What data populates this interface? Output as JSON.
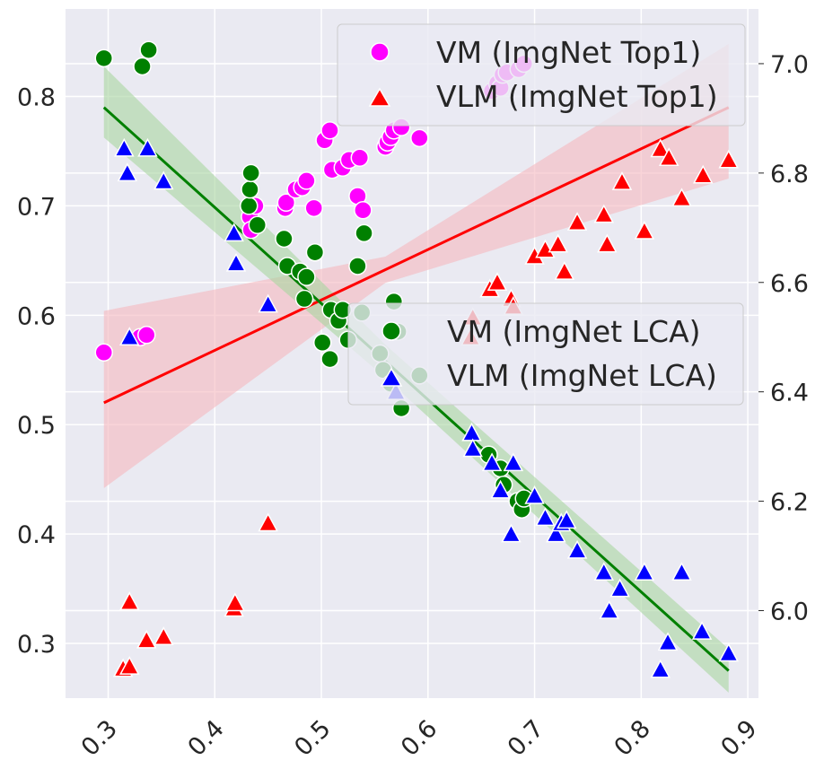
{
  "chart_data": {
    "type": "scatter",
    "x_ticks": [
      "0.3",
      "0.4",
      "0.5",
      "0.6",
      "0.7",
      "0.8",
      "0.9"
    ],
    "y_left_ticks": [
      "0.3",
      "0.4",
      "0.5",
      "0.6",
      "0.7",
      "0.8"
    ],
    "y_right_ticks": [
      "6.0",
      "6.2",
      "6.4",
      "6.6",
      "6.8",
      "7.0"
    ],
    "xlim": [
      0.26,
      0.91
    ],
    "ylim_left": [
      0.25,
      0.88
    ],
    "ylim_right": [
      5.84,
      7.1
    ],
    "grid": true,
    "legends": [
      {
        "position": "top-right",
        "entries": [
          {
            "label": "VM (ImgNet Top1)",
            "marker": "circle",
            "color": "#ff00ff"
          },
          {
            "label": "VLM (ImgNet Top1)",
            "marker": "triangle",
            "color": "#ff0000"
          }
        ]
      },
      {
        "position": "center-right",
        "entries": [
          {
            "label": "VM (ImgNet LCA)",
            "marker": "circle",
            "color": "#008000"
          },
          {
            "label": "VLM (ImgNet LCA)",
            "marker": "triangle",
            "color": "#0000ff"
          }
        ]
      }
    ],
    "series": [
      {
        "name": "VM (ImgNet Top1)",
        "axis": "left",
        "marker": "circle",
        "color": "#ff00ff",
        "points": [
          [
            0.296,
            0.566
          ],
          [
            0.33,
            0.58
          ],
          [
            0.336,
            0.582
          ],
          [
            0.433,
            0.69
          ],
          [
            0.434,
            0.678
          ],
          [
            0.438,
            0.7
          ],
          [
            0.466,
            0.698
          ],
          [
            0.467,
            0.703
          ],
          [
            0.476,
            0.715
          ],
          [
            0.482,
            0.717
          ],
          [
            0.486,
            0.723
          ],
          [
            0.493,
            0.698
          ],
          [
            0.503,
            0.76
          ],
          [
            0.508,
            0.769
          ],
          [
            0.51,
            0.733
          ],
          [
            0.52,
            0.735
          ],
          [
            0.526,
            0.742
          ],
          [
            0.534,
            0.709
          ],
          [
            0.536,
            0.744
          ],
          [
            0.539,
            0.696
          ],
          [
            0.56,
            0.754
          ],
          [
            0.562,
            0.758
          ],
          [
            0.565,
            0.763
          ],
          [
            0.568,
            0.769
          ],
          [
            0.575,
            0.772
          ],
          [
            0.592,
            0.762
          ],
          [
            0.66,
            0.805
          ],
          [
            0.665,
            0.812
          ],
          [
            0.668,
            0.808
          ],
          [
            0.67,
            0.82
          ],
          [
            0.674,
            0.822
          ],
          [
            0.685,
            0.825
          ],
          [
            0.69,
            0.83
          ]
        ]
      },
      {
        "name": "VLM (ImgNet Top1)",
        "axis": "left",
        "marker": "triangle",
        "color": "#ff0000",
        "points": [
          [
            0.314,
            0.277
          ],
          [
            0.32,
            0.279
          ],
          [
            0.32,
            0.338
          ],
          [
            0.336,
            0.303
          ],
          [
            0.352,
            0.306
          ],
          [
            0.418,
            0.332
          ],
          [
            0.419,
            0.337
          ],
          [
            0.45,
            0.41
          ],
          [
            0.64,
            0.58
          ],
          [
            0.642,
            0.598
          ],
          [
            0.658,
            0.624
          ],
          [
            0.665,
            0.63
          ],
          [
            0.678,
            0.615
          ],
          [
            0.68,
            0.608
          ],
          [
            0.7,
            0.654
          ],
          [
            0.71,
            0.66
          ],
          [
            0.722,
            0.665
          ],
          [
            0.728,
            0.64
          ],
          [
            0.74,
            0.685
          ],
          [
            0.765,
            0.692
          ],
          [
            0.768,
            0.665
          ],
          [
            0.782,
            0.722
          ],
          [
            0.803,
            0.677
          ],
          [
            0.818,
            0.752
          ],
          [
            0.826,
            0.744
          ],
          [
            0.838,
            0.707
          ],
          [
            0.858,
            0.728
          ],
          [
            0.882,
            0.742
          ]
        ]
      },
      {
        "name": "VM (ImgNet LCA)",
        "axis": "right",
        "marker": "circle",
        "color": "#008000",
        "points": [
          [
            0.296,
            7.01
          ],
          [
            0.332,
            6.995
          ],
          [
            0.338,
            7.025
          ],
          [
            0.432,
            6.74
          ],
          [
            0.433,
            6.77
          ],
          [
            0.434,
            6.8
          ],
          [
            0.44,
            6.705
          ],
          [
            0.465,
            6.68
          ],
          [
            0.468,
            6.63
          ],
          [
            0.48,
            6.62
          ],
          [
            0.484,
            6.57
          ],
          [
            0.486,
            6.61
          ],
          [
            0.494,
            6.655
          ],
          [
            0.501,
            6.49
          ],
          [
            0.508,
            6.46
          ],
          [
            0.509,
            6.55
          ],
          [
            0.516,
            6.53
          ],
          [
            0.52,
            6.55
          ],
          [
            0.525,
            6.495
          ],
          [
            0.534,
            6.63
          ],
          [
            0.538,
            6.545
          ],
          [
            0.54,
            6.69
          ],
          [
            0.555,
            6.47
          ],
          [
            0.558,
            6.44
          ],
          [
            0.565,
            6.415
          ],
          [
            0.568,
            6.565
          ],
          [
            0.572,
            6.51
          ],
          [
            0.575,
            6.37
          ],
          [
            0.592,
            6.43
          ],
          [
            0.657,
            6.285
          ],
          [
            0.668,
            6.26
          ],
          [
            0.671,
            6.23
          ],
          [
            0.684,
            6.2
          ],
          [
            0.688,
            6.185
          ],
          [
            0.69,
            6.205
          ]
        ]
      },
      {
        "name": "VLM (ImgNet LCA)",
        "axis": "right",
        "marker": "triangle",
        "color": "#0000ff",
        "points": [
          [
            0.315,
            6.845
          ],
          [
            0.318,
            6.8
          ],
          [
            0.32,
            6.5
          ],
          [
            0.337,
            6.845
          ],
          [
            0.352,
            6.785
          ],
          [
            0.418,
            6.69
          ],
          [
            0.42,
            6.635
          ],
          [
            0.45,
            6.56
          ],
          [
            0.57,
            6.4
          ],
          [
            0.641,
            6.325
          ],
          [
            0.642,
            6.296
          ],
          [
            0.66,
            6.27
          ],
          [
            0.668,
            6.22
          ],
          [
            0.678,
            6.14
          ],
          [
            0.68,
            6.27
          ],
          [
            0.7,
            6.21
          ],
          [
            0.71,
            6.17
          ],
          [
            0.72,
            6.14
          ],
          [
            0.725,
            6.16
          ],
          [
            0.73,
            6.165
          ],
          [
            0.74,
            6.11
          ],
          [
            0.765,
            6.07
          ],
          [
            0.77,
            6.0
          ],
          [
            0.78,
            6.04
          ],
          [
            0.803,
            6.07
          ],
          [
            0.818,
            5.892
          ],
          [
            0.825,
            5.942
          ],
          [
            0.838,
            6.07
          ],
          [
            0.857,
            5.962
          ],
          [
            0.882,
            5.922
          ]
        ]
      }
    ],
    "trend_lines": [
      {
        "series": "VM (ImgNet Top1)",
        "color": "#ff0000",
        "band": "#f5b7be",
        "start": [
          0.296,
          0.52
        ],
        "end": [
          0.882,
          0.79
        ],
        "band_start": [
          0.443,
          0.604
        ],
        "band_end": [
          0.748,
          0.848
        ]
      },
      {
        "series": "VM (ImgNet LCA)",
        "color": "#008000",
        "band": "#a8d5a0",
        "start": [
          0.296,
          6.92
        ],
        "end": [
          0.882,
          5.89
        ],
        "band_start": [
          6.865,
          6.995
        ],
        "band_end": [
          5.85,
          5.93
        ]
      }
    ]
  }
}
